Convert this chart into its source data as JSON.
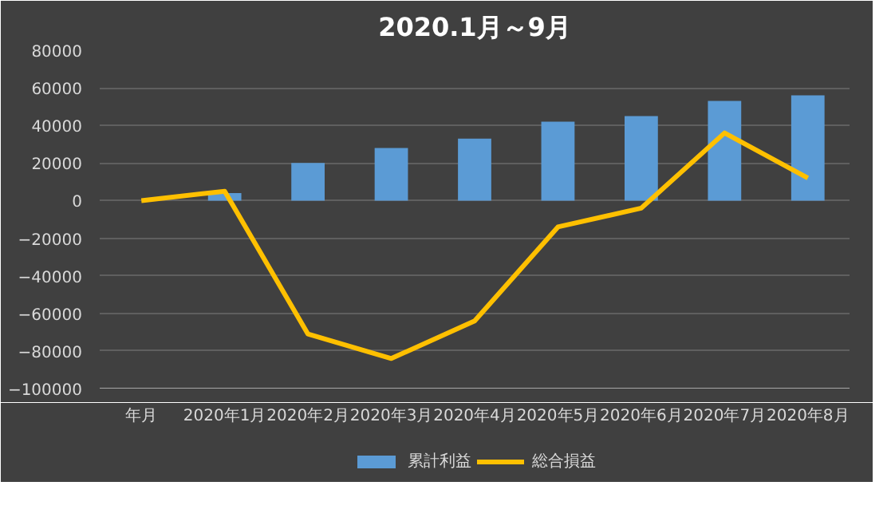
{
  "chart_data": {
    "type": "bar",
    "title": "2020.1月～9月",
    "categories": [
      "年月",
      "2020年1月",
      "2020年2月",
      "2020年3月",
      "2020年4月",
      "2020年5月",
      "2020年6月",
      "2020年7月",
      "2020年8月"
    ],
    "series": [
      {
        "name": "累計利益",
        "type": "bar",
        "color": "#5b9bd5",
        "values": [
          null,
          4000,
          20000,
          28000,
          33000,
          42000,
          45000,
          53000,
          56000
        ]
      },
      {
        "name": "総合損益",
        "type": "line",
        "color": "#ffc000",
        "values": [
          0,
          5000,
          -71000,
          -84000,
          -64000,
          -14000,
          -4000,
          36000,
          12000
        ]
      }
    ],
    "ylim": [
      -100000,
      80000
    ],
    "yticks": [
      -100000,
      -80000,
      -60000,
      -40000,
      -20000,
      0,
      20000,
      40000,
      60000,
      80000
    ],
    "grid": "y",
    "legend": "bottom"
  }
}
